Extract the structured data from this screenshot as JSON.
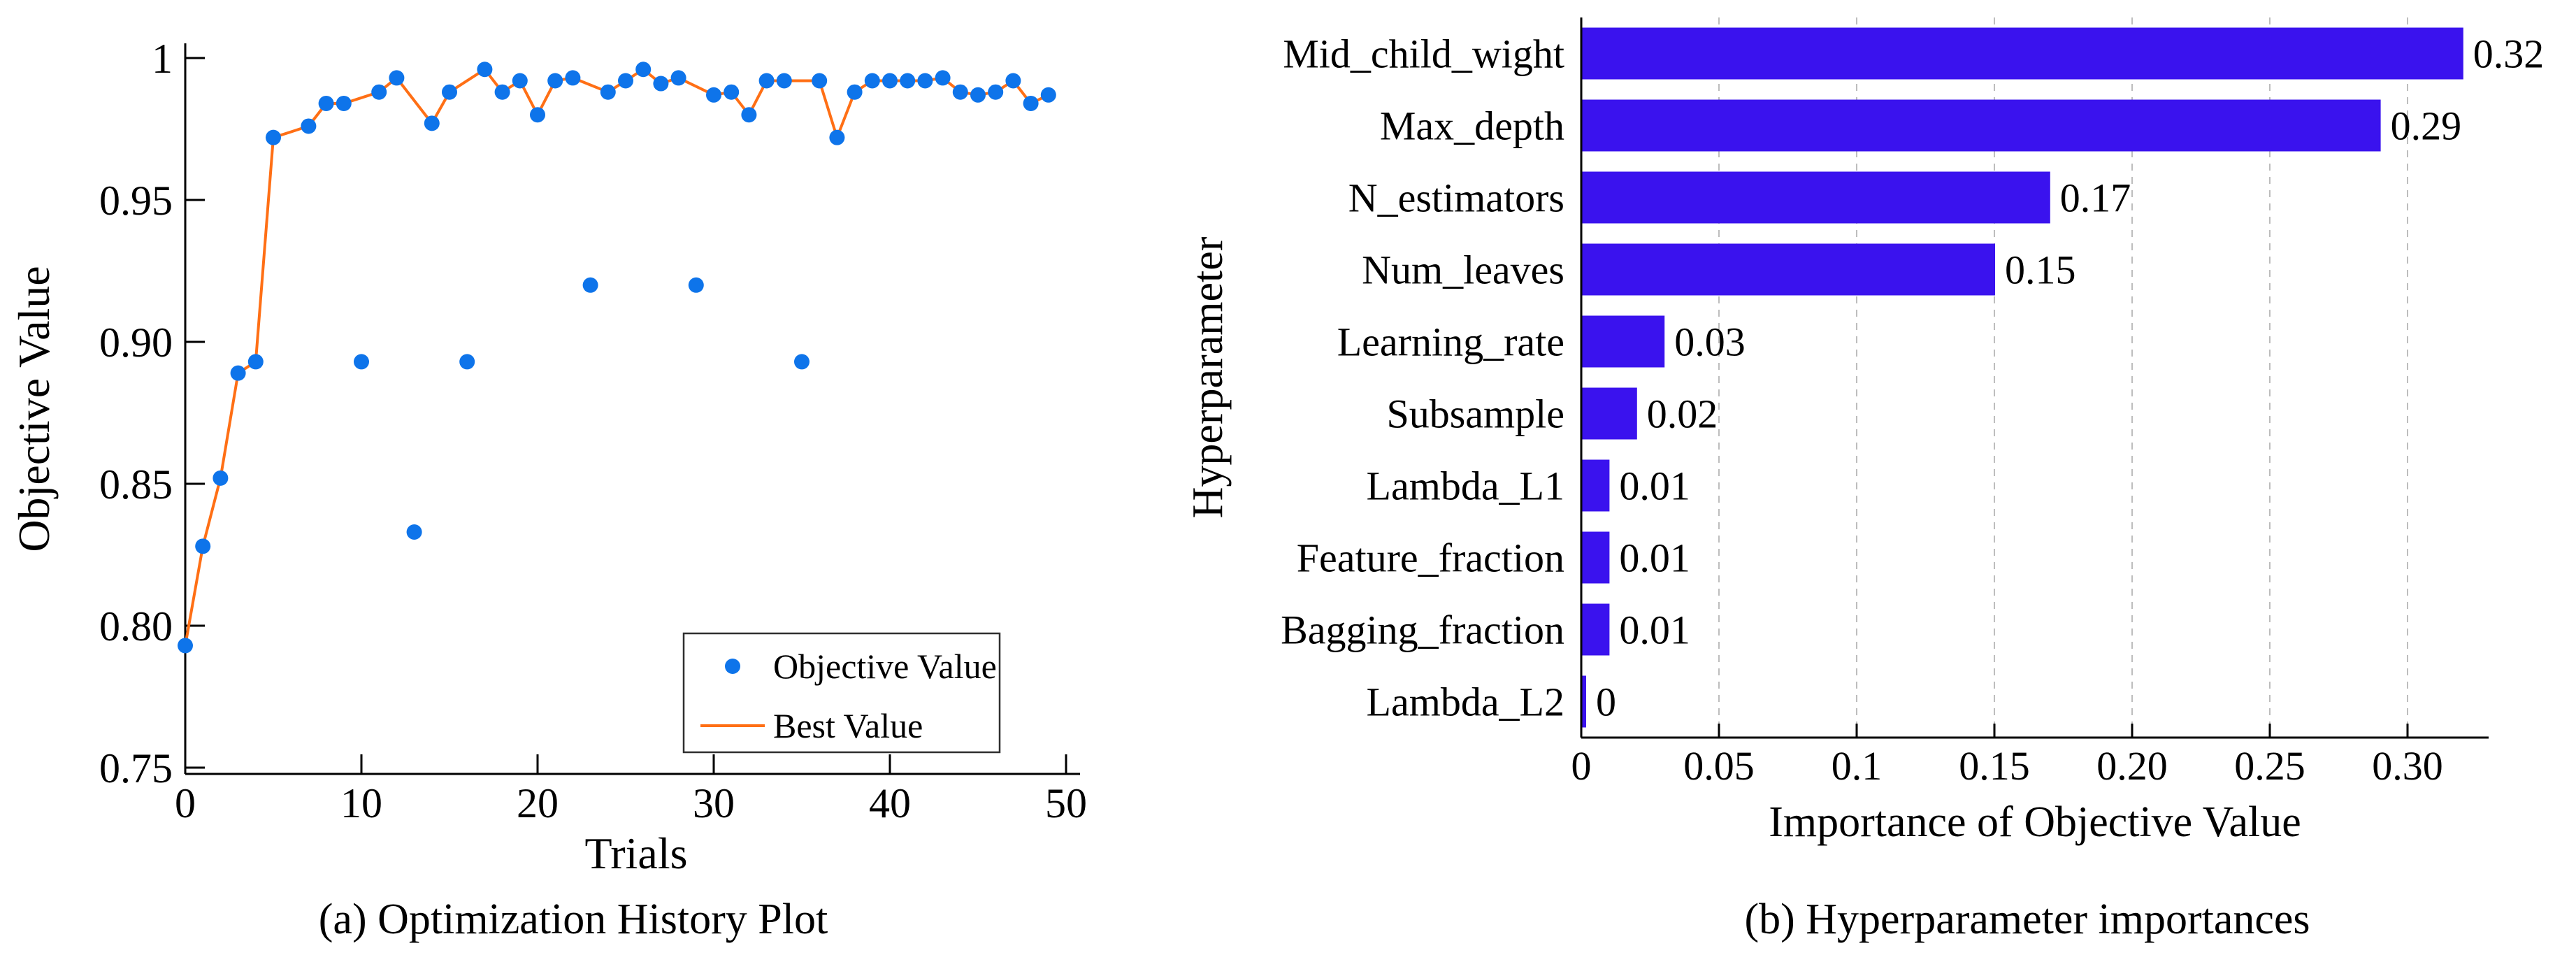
{
  "page": {
    "background": "#ffffff"
  },
  "chart_data": [
    {
      "type": "scatter",
      "title": "(a)  Optimization History Plot",
      "xlabel": "Trials",
      "ylabel": "Objective Value",
      "xlim": [
        0,
        50.8
      ],
      "ylim": [
        0.7478,
        1.0052
      ],
      "xticks": [
        0,
        10,
        20,
        30,
        40,
        50
      ],
      "xtick_labels": [
        "0",
        "10",
        "20",
        "30",
        "40",
        "50"
      ],
      "yticks": [
        1,
        0.95,
        0.9,
        0.85,
        0.8,
        0.75
      ],
      "ytick_labels": [
        "1",
        "0.95",
        "0.90",
        "0.85",
        "0.80",
        "0.75"
      ],
      "grid": false,
      "legend": {
        "position": "lower right",
        "entries": [
          "Objective Value",
          "Best Value"
        ]
      },
      "series": [
        {
          "name": "Objective Value",
          "type": "scatter",
          "color": "#0e74ea",
          "x": [
            0,
            1,
            2,
            3,
            4,
            5,
            7,
            8,
            9,
            10,
            11,
            12,
            13,
            14,
            15,
            16,
            17,
            18,
            19,
            20,
            21,
            22,
            23,
            24,
            25,
            26,
            27,
            28,
            29,
            30,
            31,
            32,
            33,
            34,
            35,
            36,
            37,
            38,
            39,
            40,
            41,
            42,
            43,
            44,
            45,
            46,
            47,
            48,
            49
          ],
          "y": [
            0.793,
            0.828,
            0.852,
            0.889,
            0.893,
            0.972,
            0.976,
            0.984,
            0.984,
            0.893,
            0.988,
            0.993,
            0.833,
            0.977,
            0.988,
            0.893,
            0.996,
            0.988,
            0.992,
            0.98,
            0.992,
            0.993,
            0.92,
            0.988,
            0.992,
            0.996,
            0.991,
            0.993,
            0.92,
            0.987,
            0.988,
            0.98,
            0.992,
            0.992,
            0.893,
            0.992,
            0.972,
            0.988,
            0.992,
            0.992,
            0.992,
            0.992,
            0.993,
            0.988,
            0.987,
            0.988,
            0.992,
            0.984,
            0.987
          ]
        },
        {
          "name": "Best Value",
          "type": "line",
          "color": "#ff6f15",
          "x": [
            0,
            1,
            2,
            3,
            4,
            5,
            6,
            7,
            8,
            9,
            11,
            12,
            14,
            15,
            17,
            18,
            19,
            20,
            21,
            22,
            24,
            25,
            26,
            27,
            28,
            30,
            31,
            32,
            33,
            34,
            36,
            37,
            38,
            39,
            40,
            41,
            42,
            43,
            44,
            45,
            46,
            47,
            48,
            49
          ],
          "y": [
            0.793,
            0.828,
            0.852,
            0.889,
            0.893,
            0.972,
            0.974,
            0.976,
            0.984,
            0.984,
            0.988,
            0.993,
            0.977,
            0.988,
            0.996,
            0.988,
            0.992,
            0.98,
            0.992,
            0.993,
            0.988,
            0.992,
            0.996,
            0.991,
            0.993,
            0.987,
            0.988,
            0.98,
            0.992,
            0.992,
            0.992,
            0.972,
            0.988,
            0.992,
            0.992,
            0.992,
            0.992,
            0.993,
            0.988,
            0.987,
            0.988,
            0.992,
            0.984,
            0.987
          ]
        }
      ]
    },
    {
      "type": "bar",
      "orientation": "horizontal",
      "title": "(b)  Hyperparameter importances",
      "xlabel": "Importance of Objective Value",
      "ylabel": "Hyperparameter",
      "categories": [
        "Mid_child_wight",
        "Max_depth",
        "N_estimators",
        "Num_leaves",
        "Learning_rate",
        "Subsample",
        "Lambda_L1",
        "Feature_fraction",
        "Bagging_fraction",
        "Lambda_L2"
      ],
      "values": [
        0.32,
        0.29,
        0.17,
        0.15,
        0.03,
        0.02,
        0.01,
        0.01,
        0.01,
        0
      ],
      "value_labels": [
        "0.32",
        "0.29",
        "0.17",
        "0.15",
        "0.03",
        "0.02",
        "0.01",
        "0.01",
        "0.01",
        "0"
      ],
      "xticks": [
        0,
        0.05,
        0.1,
        0.15,
        0.2,
        0.25,
        0.3
      ],
      "xtick_labels": [
        "0",
        "0.05",
        "0.1",
        "0.15",
        "0.20",
        "0.25",
        "0.30"
      ],
      "xlim": [
        0,
        0.3295
      ],
      "bar_color": "#3a12ee",
      "grid": "dashed-vertical",
      "grid_color": "#bdbdbd"
    }
  ]
}
